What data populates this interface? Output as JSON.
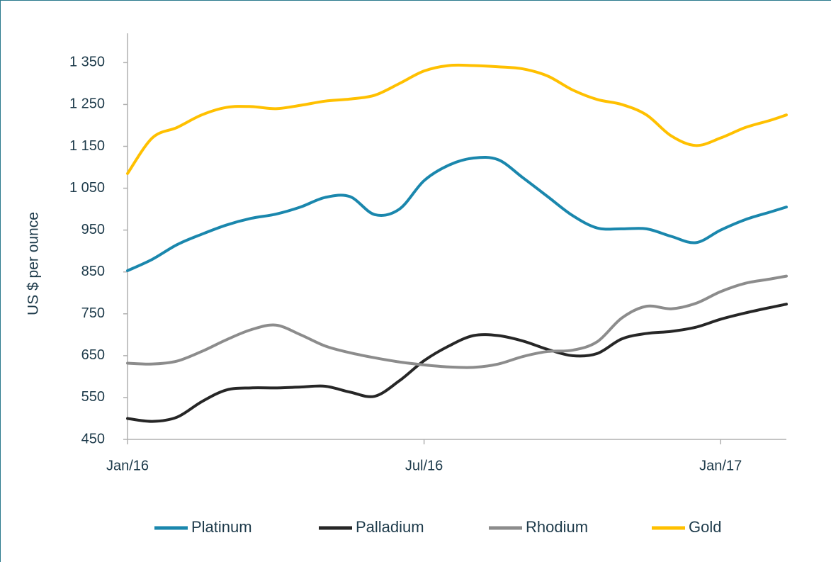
{
  "chart_data": {
    "type": "line",
    "y_label": "US $ per ounce",
    "x": [
      0,
      0.5,
      1,
      1.5,
      2,
      2.5,
      3,
      3.5,
      4,
      4.5,
      5,
      5.5,
      6,
      6.5,
      7,
      7.5,
      8,
      8.5,
      9,
      9.5,
      10,
      10.5,
      11,
      11.5,
      12,
      12.5,
      13,
      13.33
    ],
    "xlim": [
      0,
      13.33
    ],
    "xticks": [
      {
        "value": 0,
        "label": "Jan/16"
      },
      {
        "value": 6,
        "label": "Jul/16"
      },
      {
        "value": 12,
        "label": "Jan/17"
      }
    ],
    "ylim": [
      450,
      1420
    ],
    "yticks": [
      450,
      550,
      650,
      750,
      850,
      950,
      {
        "value": 1050,
        "label": "1 050"
      },
      {
        "value": 1150,
        "label": "1 150"
      },
      {
        "value": 1250,
        "label": "1 250"
      },
      {
        "value": 1350,
        "label": "1 350"
      }
    ],
    "grid": false,
    "legend": "bottom",
    "series": [
      {
        "name": "Platinum",
        "color": "#1a87ad",
        "values": [
          853,
          880,
          915,
          940,
          962,
          978,
          988,
          1005,
          1028,
          1030,
          987,
          1000,
          1068,
          1105,
          1122,
          1118,
          1075,
          1030,
          985,
          955,
          953,
          953,
          935,
          920,
          950,
          975,
          993,
          1005
        ]
      },
      {
        "name": "Palladium",
        "color": "#262626",
        "values": [
          500,
          493,
          503,
          540,
          568,
          573,
          573,
          575,
          577,
          563,
          553,
          590,
          638,
          673,
          698,
          698,
          685,
          665,
          650,
          655,
          690,
          703,
          708,
          718,
          737,
          752,
          765,
          773
        ]
      },
      {
        "name": "Rhodium",
        "color": "#8c8c8c",
        "values": [
          632,
          630,
          637,
          660,
          688,
          712,
          723,
          700,
          673,
          657,
          645,
          635,
          628,
          623,
          622,
          630,
          648,
          660,
          663,
          683,
          740,
          768,
          762,
          775,
          803,
          823,
          833,
          840
        ]
      },
      {
        "name": "Gold",
        "color": "#ffc000",
        "values": [
          1085,
          1170,
          1195,
          1225,
          1243,
          1245,
          1240,
          1248,
          1258,
          1263,
          1272,
          1300,
          1330,
          1343,
          1343,
          1340,
          1335,
          1318,
          1285,
          1262,
          1250,
          1225,
          1175,
          1152,
          1170,
          1195,
          1212,
          1225
        ]
      }
    ]
  }
}
